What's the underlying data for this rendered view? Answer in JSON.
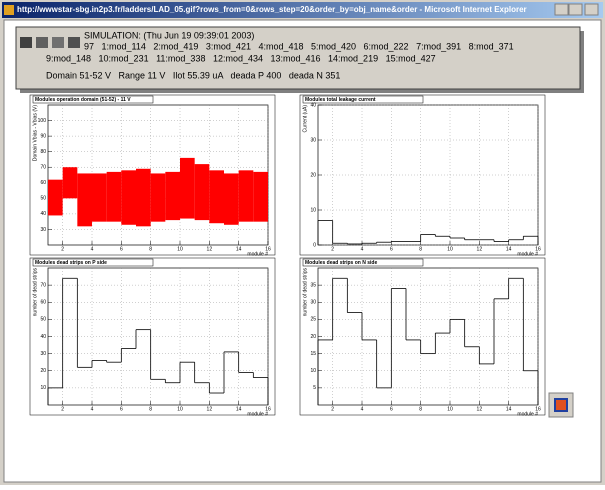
{
  "window": {
    "title": "http://wwwstar-sbg.in2p3.fr/ladders/LAD_05.gif?rows_from=0&rows_step=20&order_by=obj_name&order - Microsoft Internet Explorer"
  },
  "header": {
    "lines": [
      "SIMULATION: (Thu Jun 19 09:39:01 2003)",
      "97   1:mod_114   2:mod_419   3:mod_421   4:mod_418   5:mod_420   6:mod_222   7:mod_391   8:mod_371",
      "9:mod_148   10:mod_231   11:mod_338   12:mod_434   13:mod_416   14:mod_219   15:mod_427",
      "Domain 51-52 V   Range 11 V   Ilot 55.39 uA   deada P 400   deada N 351"
    ]
  },
  "chart_data": [
    {
      "type": "range",
      "title": "Modules operation domain (51-52) - 11 V",
      "ylabel": "Domain Vbias - Vbias (V)",
      "xlabel": "module #",
      "color": "#ff0000",
      "grid": true,
      "bins": [
        1,
        2,
        3,
        4,
        5,
        6,
        7,
        8,
        9,
        10,
        11,
        12,
        13,
        14,
        15,
        16
      ],
      "low": [
        39,
        50,
        32,
        35,
        35,
        33,
        32,
        35,
        36,
        37,
        36,
        34,
        33,
        35,
        35
      ],
      "high": [
        62,
        70,
        66,
        66,
        67,
        68,
        69,
        66,
        67,
        76,
        72,
        68,
        66,
        68,
        67
      ],
      "xlim": [
        1,
        16
      ],
      "xticks": [
        2,
        4,
        6,
        8,
        10,
        12,
        14,
        16
      ],
      "ylim": [
        20,
        110
      ],
      "yticks": [
        30,
        40,
        50,
        60,
        70,
        80,
        90,
        100
      ]
    },
    {
      "type": "histogram",
      "title": "Modules total leakage current",
      "ylabel": "Current (uA)",
      "xlabel": "module #",
      "color": "#000000",
      "grid": true,
      "bins": [
        1,
        2,
        3,
        4,
        5,
        6,
        7,
        8,
        9,
        10,
        11,
        12,
        13,
        14,
        15,
        16
      ],
      "values": [
        7,
        0.5,
        0.3,
        0.5,
        0.8,
        1,
        1,
        3,
        2.5,
        2,
        1.5,
        1.5,
        1,
        1.5,
        2.5
      ],
      "xlim": [
        1,
        16
      ],
      "xticks": [
        2,
        4,
        6,
        8,
        10,
        12,
        14,
        16
      ],
      "ylim": [
        0,
        40
      ],
      "yticks": [
        0,
        10,
        20,
        30,
        40
      ]
    },
    {
      "type": "histogram",
      "title": "Modules dead strips on P side",
      "ylabel": "number of dead strips",
      "xlabel": "module #",
      "color": "#000000",
      "grid": true,
      "bins": [
        1,
        2,
        3,
        4,
        5,
        6,
        7,
        8,
        9,
        10,
        11,
        12,
        13,
        14,
        15,
        16
      ],
      "values": [
        10,
        74,
        22,
        26,
        25,
        33,
        44,
        15,
        13,
        25,
        13,
        7,
        31,
        19,
        16
      ],
      "xlim": [
        1,
        16
      ],
      "xticks": [
        2,
        4,
        6,
        8,
        10,
        12,
        14,
        16
      ],
      "ylim": [
        0,
        80
      ],
      "yticks": [
        10,
        20,
        30,
        40,
        50,
        60,
        70
      ]
    },
    {
      "type": "histogram",
      "title": "Modules dead strips on N side",
      "ylabel": "number of dead strips",
      "xlabel": "module #",
      "color": "#000000",
      "grid": true,
      "bins": [
        1,
        2,
        3,
        4,
        5,
        6,
        7,
        8,
        9,
        10,
        11,
        12,
        13,
        14,
        15,
        16
      ],
      "values": [
        19,
        37,
        27,
        19,
        5,
        34,
        19,
        15,
        21,
        25,
        17,
        12,
        31,
        37,
        10
      ],
      "xlim": [
        1,
        16
      ],
      "xticks": [
        2,
        4,
        6,
        8,
        10,
        12,
        14,
        16
      ],
      "ylim": [
        0,
        40
      ],
      "yticks": [
        5,
        10,
        15,
        20,
        25,
        30,
        35
      ]
    }
  ]
}
